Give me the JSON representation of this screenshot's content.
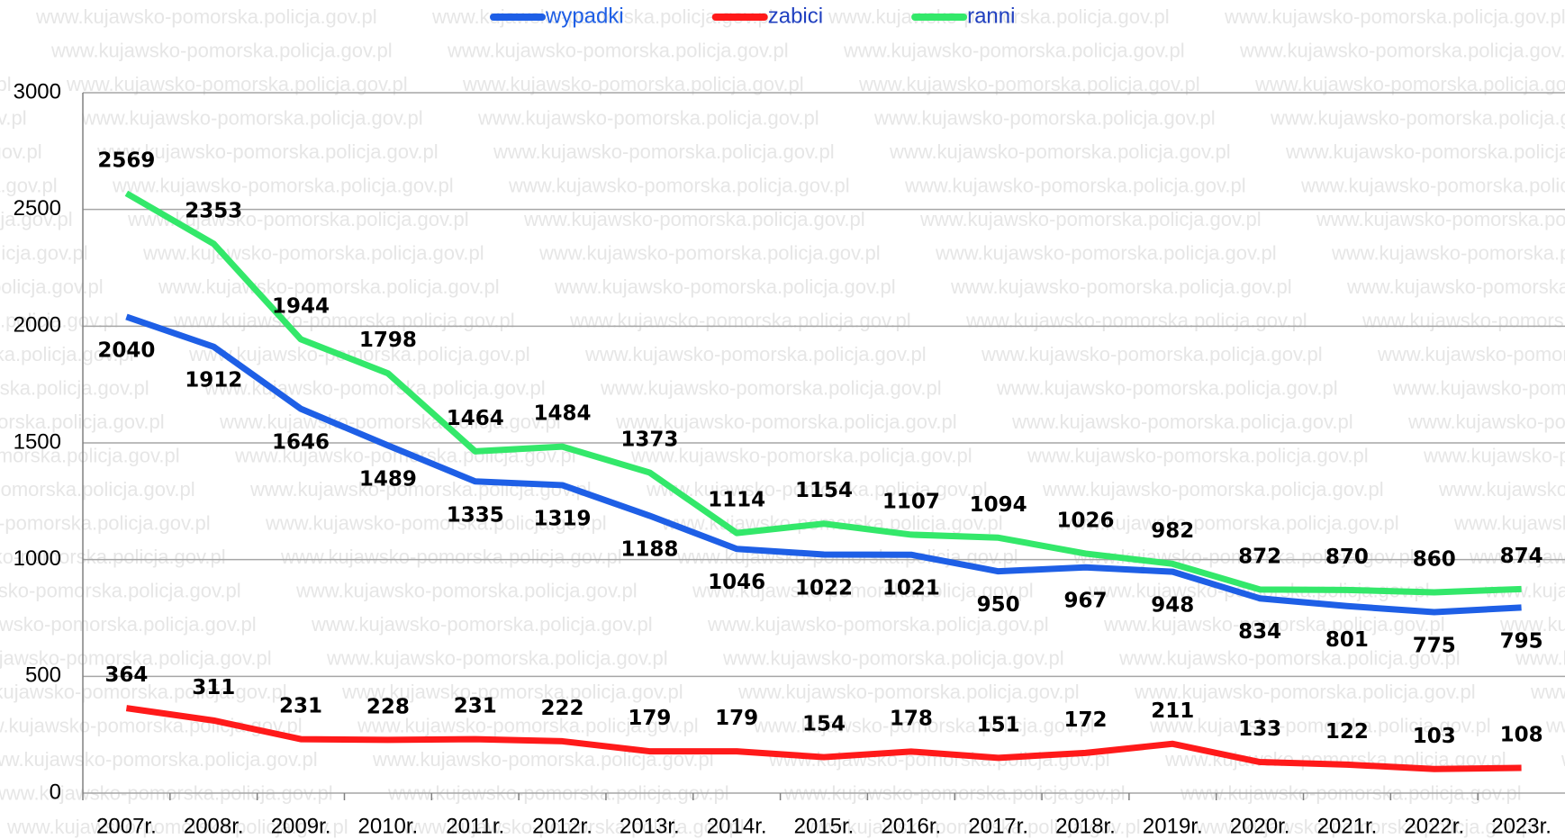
{
  "chart_data": {
    "type": "line",
    "watermark": "www.kujawsko-pomorska.policja.gov.pl",
    "categories": [
      "2007r.",
      "2008r.",
      "2009r.",
      "2010r.",
      "2011r.",
      "2012r.",
      "2013r.",
      "2014r.",
      "2015r.",
      "2016r.",
      "2017r.",
      "2018r.",
      "2019r.",
      "2020r.",
      "2021r.",
      "2022r.",
      "2023r."
    ],
    "series": [
      {
        "name": "wypadki",
        "color": "#1e5fe6",
        "values": [
          2040,
          1912,
          1646,
          1489,
          1335,
          1319,
          1188,
          1046,
          1022,
          1021,
          950,
          967,
          948,
          834,
          801,
          775,
          795
        ]
      },
      {
        "name": "zabici",
        "color": "#ff1a1a",
        "values": [
          364,
          311,
          231,
          228,
          231,
          222,
          179,
          179,
          154,
          178,
          151,
          172,
          211,
          133,
          122,
          103,
          108
        ]
      },
      {
        "name": "ranni",
        "color": "#33e86a",
        "values": [
          2569,
          2353,
          1944,
          1798,
          1464,
          1484,
          1373,
          1114,
          1154,
          1107,
          1094,
          1026,
          982,
          872,
          870,
          860,
          874
        ]
      }
    ],
    "ylim": [
      0,
      3000
    ],
    "yticks": [
      0,
      500,
      1000,
      1500,
      2000,
      2500,
      3000
    ],
    "grid": true,
    "legend": "top"
  }
}
